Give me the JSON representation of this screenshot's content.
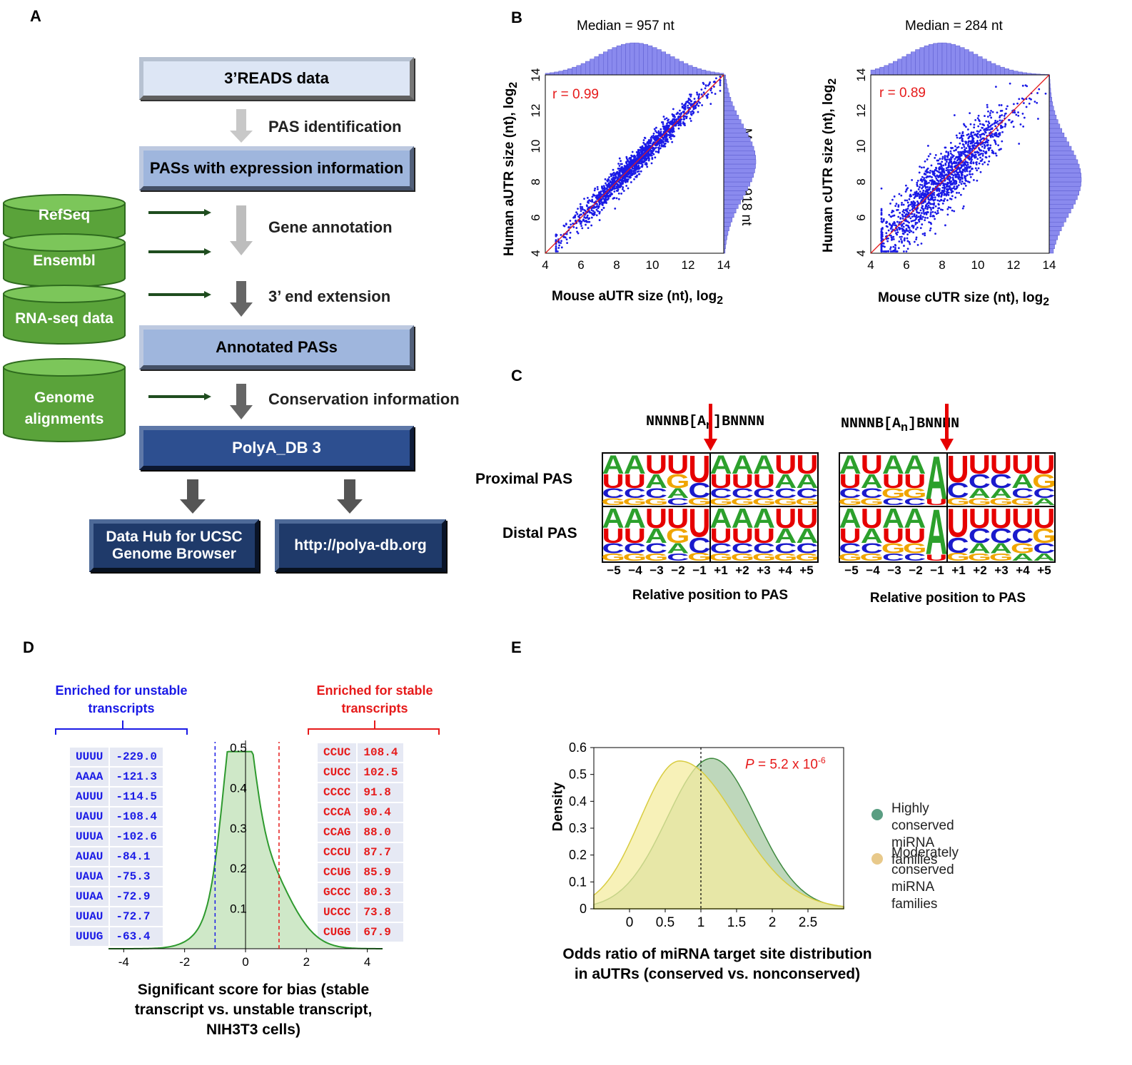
{
  "panels": {
    "a": "A",
    "b": "B",
    "c": "C",
    "d": "D",
    "e": "E"
  },
  "panel_a": {
    "boxes": {
      "reads": "3’READS data",
      "pas_expr": "PASs with expression information",
      "annotated": "Annotated PASs",
      "polyadb": "PolyA_DB 3",
      "ucsc": "Data Hub for UCSC Genome Browser",
      "url": "http://polya-db.org"
    },
    "steps": {
      "pas_id": "PAS identification",
      "gene_ann": "Gene annotation",
      "ext": "3’ end extension",
      "cons": "Conservation information"
    },
    "sources": {
      "refseq": "RefSeq",
      "ensembl": "Ensembl",
      "rnaseq": "RNA-seq data",
      "genome1": "Genome",
      "genome2": "alignments"
    },
    "colors": {
      "cylinder": "#5aa33a",
      "arrow_light": "#bfbfbf",
      "arrow_dark": "#555555",
      "source_arrow": "#1f4d1f"
    }
  },
  "panel_b": {
    "left": {
      "median_top": "Median = 957 nt",
      "median_right": "Median = 918 nt",
      "r": "r = 0.99",
      "ylabel": "Human aUTR size (nt), log",
      "xlabel": "Mouse aUTR size (nt), log",
      "sub": "2"
    },
    "right": {
      "median_top": "Median = 284 nt",
      "r": "r = 0.89",
      "ylabel": "Human cUTR size (nt), log",
      "xlabel": "Mouse cUTR size (nt), log",
      "sub": "2"
    },
    "ticks": [
      "4",
      "6",
      "8",
      "10",
      "12",
      "14"
    ],
    "colors": {
      "points": "#1a1ae6",
      "fit": "#e61a1a",
      "hist": "#7c7ce8"
    }
  },
  "chart_data": [
    {
      "type": "scatter",
      "xlabel": "Mouse aUTR size (nt), log2",
      "ylabel": "Human aUTR size (nt), log2",
      "xlim": [
        4,
        14
      ],
      "ylim": [
        4,
        14
      ],
      "r": 0.99,
      "x_median_nt": 957,
      "y_median_nt": 918
    },
    {
      "type": "scatter",
      "xlabel": "Mouse cUTR size (nt), log2",
      "ylabel": "Human cUTR size (nt), log2",
      "xlim": [
        4,
        14
      ],
      "ylim": [
        4,
        14
      ],
      "r": 0.89,
      "x_median_nt": 284
    },
    {
      "type": "area",
      "xlabel": "Significant score for bias (stable transcript vs. unstable transcript, NIH3T3 cells)",
      "xlim": [
        -4.5,
        4.5
      ],
      "ylim": [
        0,
        0.5
      ],
      "x_ticks": [
        -4,
        -2,
        0,
        2,
        4
      ],
      "y_ticks": [
        0.1,
        0.2,
        0.3,
        0.4,
        0.5
      ],
      "thresholds": [
        -1.0,
        1.1
      ]
    },
    {
      "type": "area",
      "xlabel": "Odds ratio of miRNA target site distribution in aUTRs (conserved vs. nonconserved)",
      "ylabel": "Density",
      "xlim": [
        -0.5,
        3
      ],
      "ylim": [
        0,
        0.6
      ],
      "x_ticks": [
        0,
        0.5,
        1,
        1.5,
        2,
        2.5
      ],
      "y_ticks": [
        0,
        0.1,
        0.2,
        0.3,
        0.4,
        0.5,
        0.6
      ],
      "series": [
        {
          "name": "Highly conserved miRNA families",
          "peak_x": 1.15,
          "peak_y": 0.56
        },
        {
          "name": "Moderately conserved miRNA families",
          "peak_x": 0.7,
          "peak_y": 0.55
        }
      ],
      "annotation": "P = 5.2 x 10-6"
    }
  ],
  "panel_c": {
    "motif": "NNNNB",
    "bracket_open": "[",
    "an": "A",
    "an_sub": "n",
    "bracket_close": "]",
    "motif_end": "BNNNN",
    "row_labels": [
      "Proximal PAS",
      "Distal PAS"
    ],
    "positions": [
      "−5",
      "−4",
      "−3",
      "−2",
      "−1",
      "+1",
      "+2",
      "+3",
      "+4",
      "+5"
    ],
    "xlabel": "Relative position to PAS",
    "logos": {
      "left_prox": [
        [
          "A",
          "U",
          "C",
          "G"
        ],
        [
          "A",
          "U",
          "C",
          "G"
        ],
        [
          "U",
          "A",
          "C",
          "G"
        ],
        [
          "U",
          "G",
          "A",
          "C"
        ],
        [
          "U",
          "C",
          "G"
        ],
        [
          "A",
          "U",
          "C",
          "G"
        ],
        [
          "A",
          "U",
          "C",
          "G"
        ],
        [
          "A",
          "U",
          "C",
          "G"
        ],
        [
          "U",
          "A",
          "C",
          "G"
        ],
        [
          "U",
          "A",
          "C",
          "G"
        ]
      ],
      "left_dist": [
        [
          "A",
          "U",
          "C",
          "G"
        ],
        [
          "A",
          "U",
          "C",
          "G"
        ],
        [
          "U",
          "A",
          "C",
          "G"
        ],
        [
          "U",
          "G",
          "A",
          "C"
        ],
        [
          "U",
          "C",
          "G"
        ],
        [
          "A",
          "U",
          "C",
          "G"
        ],
        [
          "A",
          "U",
          "C",
          "G"
        ],
        [
          "A",
          "U",
          "C",
          "G"
        ],
        [
          "U",
          "A",
          "C",
          "G"
        ],
        [
          "U",
          "A",
          "C",
          "G"
        ]
      ],
      "right_prox": [
        [
          "A",
          "U",
          "C",
          "G"
        ],
        [
          "U",
          "A",
          "C",
          "G"
        ],
        [
          "A",
          "U",
          "G",
          "C"
        ],
        [
          "A",
          "U",
          "G",
          "C"
        ],
        [
          "A",
          "U"
        ],
        [
          "U",
          "C",
          "G"
        ],
        [
          "U",
          "C",
          "A",
          "G"
        ],
        [
          "U",
          "C",
          "A",
          "G"
        ],
        [
          "U",
          "A",
          "C",
          "G"
        ],
        [
          "U",
          "G",
          "C",
          "A"
        ]
      ],
      "right_dist": [
        [
          "A",
          "U",
          "C",
          "G"
        ],
        [
          "U",
          "A",
          "C",
          "G"
        ],
        [
          "A",
          "U",
          "G",
          "C"
        ],
        [
          "A",
          "U",
          "G",
          "C"
        ],
        [
          "A",
          "U"
        ],
        [
          "U",
          "C",
          "G"
        ],
        [
          "U",
          "C",
          "A",
          "G"
        ],
        [
          "U",
          "C",
          "A",
          "G"
        ],
        [
          "U",
          "C",
          "G",
          "A"
        ],
        [
          "U",
          "G",
          "C",
          "A"
        ]
      ]
    },
    "colors": {
      "A": "#2ca02c",
      "U": "#e60000",
      "C": "#1a1acc",
      "G": "#f0a500",
      "arrow": "#e60000"
    }
  },
  "panel_d": {
    "unstable_title_1": "Enriched for unstable",
    "unstable_title_2": "transcripts",
    "stable_title_1": "Enriched for stable",
    "stable_title_2": "transcripts",
    "unstable": [
      [
        "UUUU",
        "-229.0"
      ],
      [
        "AAAA",
        "-121.3"
      ],
      [
        "AUUU",
        "-114.5"
      ],
      [
        "UAUU",
        "-108.4"
      ],
      [
        "UUUA",
        "-102.6"
      ],
      [
        "AUAU",
        "-84.1"
      ],
      [
        "UAUA",
        "-75.3"
      ],
      [
        "UUAA",
        "-72.9"
      ],
      [
        "UUAU",
        "-72.7"
      ],
      [
        "UUUG",
        "-63.4"
      ]
    ],
    "stable": [
      [
        "CCUC",
        "108.4"
      ],
      [
        "CUCC",
        "102.5"
      ],
      [
        "CCCC",
        "91.8"
      ],
      [
        "CCCA",
        "90.4"
      ],
      [
        "CCAG",
        "88.0"
      ],
      [
        "CCCU",
        "87.7"
      ],
      [
        "CCUG",
        "85.9"
      ],
      [
        "GCCC",
        "80.3"
      ],
      [
        "UCCC",
        "73.8"
      ],
      [
        "CUGG",
        "67.9"
      ]
    ],
    "x_ticks": [
      "-4",
      "-2",
      "0",
      "2",
      "4"
    ],
    "y_ticks": [
      "0.5",
      "0.4",
      "0.3",
      "0.2",
      "0.1"
    ],
    "xlabel_1": "Significant score for bias (stable",
    "xlabel_2": "transcript vs. unstable transcript,",
    "xlabel_3": "NIH3T3 cells)",
    "colors": {
      "fill": "#cfe8c8",
      "line": "#2e9a2e",
      "blue": "#1a1ae6",
      "red": "#e61a1a"
    }
  },
  "panel_e": {
    "ylabel": "Density",
    "x_ticks": [
      "0",
      "0.5",
      "1",
      "1.5",
      "2",
      "2.5"
    ],
    "y_ticks": [
      "0.6",
      "0.5",
      "0.4",
      "0.3",
      "0.2",
      "0.1",
      "0"
    ],
    "p_label": "P",
    "p_value": " = 5.2 x 10",
    "p_exp": "-6",
    "legend": [
      {
        "line1": "Highly conserved",
        "line2": "miRNA families",
        "color": "#5a9e82"
      },
      {
        "line1": "Moderately conserved",
        "line2": "miRNA families",
        "color": "#e8c98a"
      }
    ],
    "xlabel_1": "Odds ratio of miRNA target site distribution",
    "xlabel_2": "in aUTRs (conserved vs. nonconserved)",
    "colors": {
      "high_fill": "#a8c9a4",
      "high_line": "#3f8a3f",
      "mod_fill": "#f4eca0",
      "mod_line": "#d8cc40",
      "overlap": "#b7bf6a"
    }
  }
}
